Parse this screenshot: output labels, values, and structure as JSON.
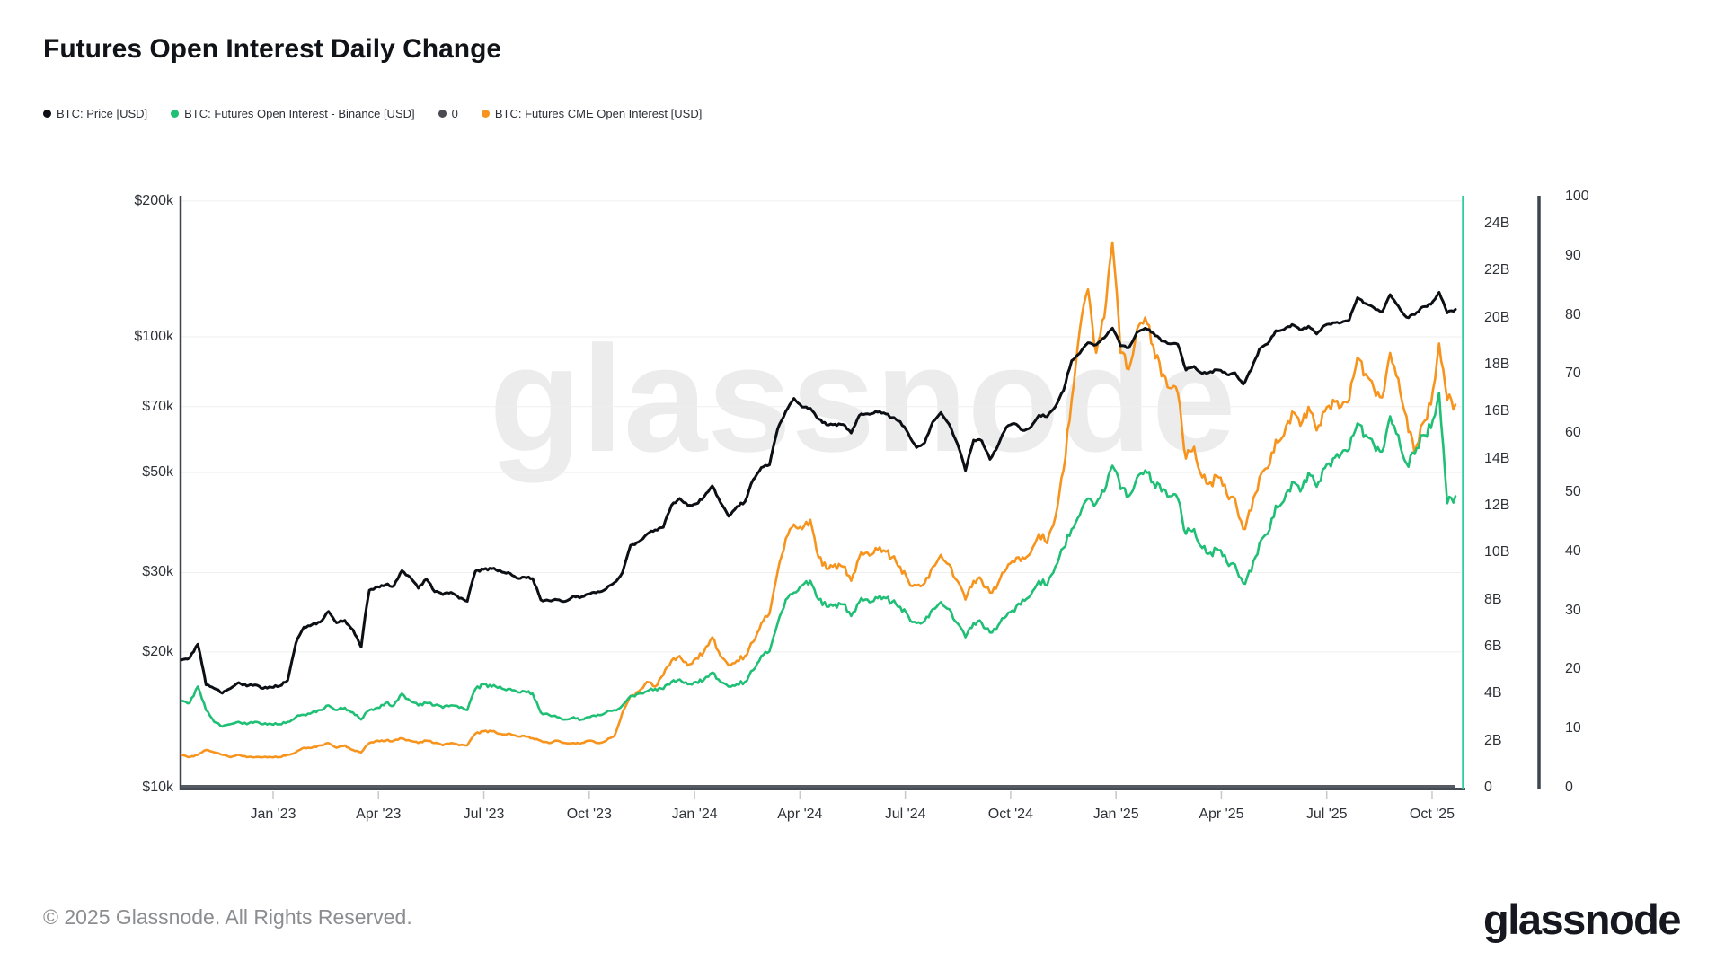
{
  "title": "Futures Open Interest Daily Change",
  "watermark": "glassnode",
  "footer": {
    "copyright": "© 2025 Glassnode. All Rights Reserved.",
    "brand": "glassnode"
  },
  "colors": {
    "price": "#0c0f14",
    "binance_oi": "#1fbf75",
    "zero_series": "#565b63",
    "cme_oi": "#f7941d",
    "oi_axis_line": "#2bcf9e",
    "secondary_axis_line": "#3f4550",
    "grid": "#efefef",
    "axis_dark": "#474d57",
    "tick_mark": "#c5c8cc",
    "legend_zero_dot": "#4a4a52"
  },
  "legend": [
    {
      "label": "BTC: Price [USD]",
      "color": "#0c0f14"
    },
    {
      "label": "BTC: Futures Open Interest - Binance [USD]",
      "color": "#1fbf75"
    },
    {
      "label": "0",
      "color": "#4a4a52"
    },
    {
      "label": "BTC: Futures CME Open Interest [USD]",
      "color": "#f7941d"
    }
  ],
  "chart_data": {
    "type": "line",
    "title": "Futures Open Interest Daily Change",
    "sampling": "weekly points, Oct 2022 – Oct 2025",
    "grid": "horizontal only",
    "x_tick_labels": [
      "Jan '23",
      "Apr '23",
      "Jul '23",
      "Oct '23",
      "Jan '24",
      "Apr '24",
      "Jul '24",
      "Oct '24",
      "Jan '25",
      "Apr '25",
      "Jul '25",
      "Oct '25"
    ],
    "left_axis": {
      "unit": "USD",
      "scale": "log",
      "tick_labels": [
        "$200k",
        "$100k",
        "$70k",
        "$50k",
        "$30k",
        "$20k",
        "$10k"
      ],
      "tick_values_thouseands_usd": [
        200,
        100,
        70,
        50,
        30,
        20,
        10
      ]
    },
    "right_axis_open_interest": {
      "unit": "USD billions",
      "scale": "linear",
      "tick_labels": [
        "24B",
        "22B",
        "20B",
        "18B",
        "16B",
        "14B",
        "12B",
        "10B",
        "8B",
        "6B",
        "4B",
        "2B",
        "0"
      ],
      "tick_values_billions": [
        24,
        22,
        20,
        18,
        16,
        14,
        12,
        10,
        8,
        6,
        4,
        2,
        0
      ]
    },
    "right_axis_secondary": {
      "scale": "linear",
      "tick_labels": [
        "100",
        "90",
        "80",
        "70",
        "60",
        "50",
        "40",
        "30",
        "20",
        "10",
        "0"
      ],
      "tick_values": [
        100,
        90,
        80,
        70,
        60,
        50,
        40,
        30,
        20,
        10,
        0
      ]
    },
    "series": [
      {
        "name": "BTC: Price [USD]",
        "color": "#0c0f14",
        "axis": "left_log_usd",
        "unit": "thousands USD",
        "values": [
          19.2,
          19.4,
          20.8,
          16.9,
          16.6,
          16.2,
          16.6,
          17.1,
          16.8,
          16.9,
          16.6,
          16.7,
          16.8,
          17.3,
          20.9,
          22.7,
          23.0,
          23.3,
          24.6,
          23.2,
          23.5,
          22.4,
          20.5,
          27.4,
          27.9,
          28.2,
          28.0,
          30.3,
          29.3,
          27.7,
          29.0,
          27.2,
          26.8,
          27.1,
          26.3,
          25.9,
          30.2,
          30.5,
          30.6,
          30.3,
          30.0,
          29.2,
          29.3,
          29.1,
          26.1,
          26.0,
          26.1,
          25.9,
          26.6,
          26.5,
          26.9,
          27.2,
          27.6,
          28.5,
          30.0,
          34.5,
          35.1,
          36.5,
          37.3,
          37.8,
          42.3,
          43.8,
          42.3,
          42.6,
          44.2,
          46.7,
          42.9,
          40.0,
          42.0,
          43.1,
          48.2,
          51.3,
          52.0,
          62.5,
          68.3,
          73.0,
          69.9,
          69.4,
          65.7,
          63.8,
          64.0,
          63.9,
          61.2,
          66.9,
          67.5,
          68.3,
          67.8,
          66.2,
          64.9,
          61.0,
          56.8,
          58.2,
          64.8,
          67.9,
          64.0,
          58.0,
          50.5,
          59.0,
          58.8,
          53.5,
          57.5,
          63.0,
          64.2,
          62.0,
          63.0,
          67.0,
          66.5,
          70.0,
          76.0,
          88.5,
          92.0,
          97.0,
          96.0,
          99.5,
          104.5,
          95.5,
          94.5,
          102.3,
          104.5,
          102.0,
          97.8,
          96.5,
          96.2,
          84.4,
          86.0,
          82.9,
          83.7,
          84.4,
          82.5,
          83.2,
          78.5,
          84.5,
          94.0,
          96.5,
          103.2,
          103.8,
          106.5,
          103.5,
          105.5,
          101.5,
          106.0,
          107.5,
          107.5,
          109.0,
          122.0,
          118.5,
          116.0,
          113.5,
          124.0,
          117.0,
          110.5,
          112.0,
          116.5,
          118.0,
          125.5,
          113.0,
          115.0
        ]
      },
      {
        "name": "BTC: Futures Open Interest - Binance [USD]",
        "color": "#1fbf75",
        "axis": "right_billions",
        "unit": "billions USD",
        "values": [
          3.7,
          3.6,
          4.3,
          3.3,
          2.8,
          2.6,
          2.7,
          2.8,
          2.7,
          2.8,
          2.7,
          2.7,
          2.7,
          2.8,
          3.0,
          3.1,
          3.2,
          3.3,
          3.5,
          3.3,
          3.4,
          3.2,
          2.9,
          3.3,
          3.4,
          3.6,
          3.5,
          4.0,
          3.7,
          3.5,
          3.6,
          3.5,
          3.4,
          3.5,
          3.4,
          3.3,
          4.2,
          4.4,
          4.3,
          4.3,
          4.2,
          4.1,
          4.1,
          4.0,
          3.2,
          3.1,
          3.0,
          2.9,
          3.0,
          2.9,
          3.0,
          3.1,
          3.2,
          3.3,
          3.5,
          3.9,
          4.0,
          4.1,
          4.2,
          4.2,
          4.5,
          4.6,
          4.4,
          4.5,
          4.6,
          4.9,
          4.5,
          4.3,
          4.4,
          4.5,
          5.0,
          5.6,
          5.8,
          7.0,
          8.0,
          8.3,
          8.6,
          8.8,
          8.0,
          7.7,
          7.8,
          7.8,
          7.3,
          7.9,
          8.0,
          8.1,
          8.1,
          7.9,
          7.7,
          7.3,
          7.0,
          7.1,
          7.6,
          7.9,
          7.6,
          7.0,
          6.4,
          7.0,
          7.0,
          6.6,
          6.9,
          7.3,
          7.5,
          8.0,
          8.2,
          8.8,
          8.6,
          9.4,
          10.2,
          11.0,
          11.6,
          12.3,
          12.1,
          12.6,
          13.7,
          12.7,
          12.4,
          13.2,
          13.5,
          13.0,
          12.6,
          12.4,
          12.3,
          10.8,
          11.0,
          10.2,
          10.0,
          10.1,
          9.6,
          9.5,
          8.7,
          9.2,
          10.4,
          10.8,
          12.0,
          12.2,
          13.0,
          12.6,
          13.4,
          12.8,
          13.6,
          14.0,
          14.2,
          14.4,
          15.5,
          15.0,
          14.6,
          14.3,
          15.8,
          15.0,
          13.8,
          14.2,
          15.0,
          15.3,
          16.8,
          12.1,
          12.4
        ]
      },
      {
        "name": "0",
        "color": "#565b63",
        "axis": "right_secondary",
        "constant": 0
      },
      {
        "name": "BTC: Futures CME Open Interest [USD]",
        "color": "#f7941d",
        "axis": "right_billions",
        "unit": "billions USD",
        "values": [
          1.4,
          1.3,
          1.4,
          1.6,
          1.5,
          1.4,
          1.3,
          1.4,
          1.3,
          1.3,
          1.3,
          1.3,
          1.3,
          1.4,
          1.5,
          1.7,
          1.7,
          1.8,
          1.9,
          1.7,
          1.8,
          1.6,
          1.5,
          1.9,
          2.0,
          2.0,
          2.0,
          2.1,
          2.0,
          1.9,
          2.0,
          1.9,
          1.8,
          1.9,
          1.8,
          1.8,
          2.3,
          2.4,
          2.4,
          2.3,
          2.3,
          2.2,
          2.2,
          2.1,
          2.0,
          1.9,
          2.0,
          1.9,
          1.9,
          1.9,
          2.0,
          1.9,
          2.0,
          2.2,
          3.2,
          3.9,
          4.1,
          4.5,
          4.3,
          4.8,
          5.4,
          5.6,
          5.2,
          5.5,
          5.8,
          6.4,
          5.6,
          5.2,
          5.4,
          5.6,
          6.2,
          7.0,
          7.4,
          9.2,
          10.6,
          11.2,
          11.0,
          11.4,
          9.8,
          9.3,
          9.5,
          9.4,
          8.8,
          9.8,
          10.0,
          10.2,
          10.1,
          9.8,
          9.4,
          8.8,
          8.6,
          8.7,
          9.4,
          9.9,
          9.5,
          8.8,
          8.0,
          8.8,
          8.8,
          8.3,
          8.7,
          9.3,
          9.6,
          9.8,
          10.0,
          10.8,
          10.4,
          11.5,
          13.5,
          16.5,
          19.5,
          21.2,
          18.5,
          20.0,
          23.2,
          18.5,
          17.8,
          19.5,
          20.0,
          18.8,
          17.5,
          17.0,
          16.8,
          14.0,
          14.5,
          13.2,
          13.0,
          13.2,
          12.5,
          12.3,
          11.0,
          11.8,
          13.2,
          13.6,
          14.8,
          15.0,
          16.0,
          15.4,
          16.2,
          15.2,
          16.0,
          16.5,
          16.2,
          16.5,
          18.3,
          17.6,
          17.0,
          16.6,
          18.5,
          17.4,
          15.8,
          14.2,
          15.5,
          16.3,
          18.9,
          16.5,
          16.3
        ]
      }
    ]
  }
}
